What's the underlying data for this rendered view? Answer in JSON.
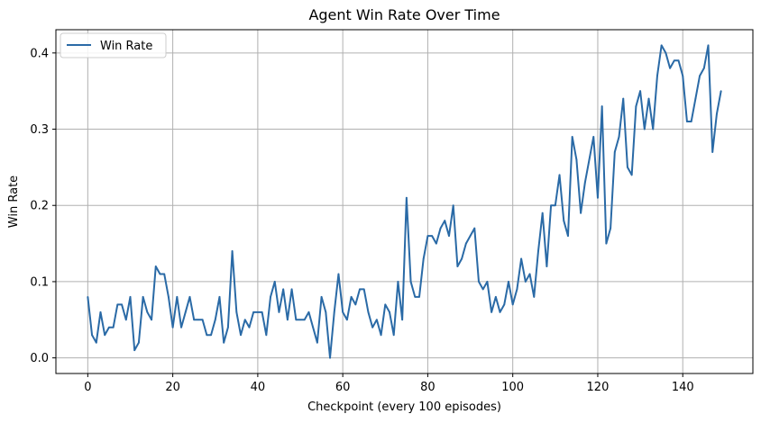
{
  "chart_data": {
    "type": "line",
    "title": "Agent Win Rate Over Time",
    "xlabel": "Checkpoint (every 100 episodes)",
    "ylabel": "Win Rate",
    "xlim": [
      -7.5,
      156.5
    ],
    "ylim": [
      -0.0205,
      0.4305
    ],
    "x_ticks": [
      0,
      20,
      40,
      60,
      80,
      100,
      120,
      140
    ],
    "y_ticks": [
      0.0,
      0.1,
      0.2,
      0.3,
      0.4
    ],
    "x_tick_labels": [
      "0",
      "20",
      "40",
      "60",
      "80",
      "100",
      "120",
      "140"
    ],
    "y_tick_labels": [
      "0.0",
      "0.1",
      "0.2",
      "0.3",
      "0.4"
    ],
    "grid": true,
    "legend_position": "top-left",
    "series": [
      {
        "name": "Win Rate",
        "color": "#2a6aa6",
        "x_start": 0,
        "x_step": 1,
        "values": [
          0.08,
          0.03,
          0.02,
          0.06,
          0.03,
          0.04,
          0.04,
          0.07,
          0.07,
          0.05,
          0.08,
          0.01,
          0.02,
          0.08,
          0.06,
          0.05,
          0.12,
          0.11,
          0.11,
          0.08,
          0.04,
          0.08,
          0.04,
          0.06,
          0.08,
          0.05,
          0.05,
          0.05,
          0.03,
          0.03,
          0.05,
          0.08,
          0.02,
          0.04,
          0.14,
          0.06,
          0.03,
          0.05,
          0.04,
          0.06,
          0.06,
          0.06,
          0.03,
          0.08,
          0.1,
          0.06,
          0.09,
          0.05,
          0.09,
          0.05,
          0.05,
          0.05,
          0.06,
          0.04,
          0.02,
          0.08,
          0.06,
          0.0,
          0.06,
          0.11,
          0.06,
          0.05,
          0.08,
          0.07,
          0.09,
          0.09,
          0.06,
          0.04,
          0.05,
          0.03,
          0.07,
          0.06,
          0.03,
          0.1,
          0.05,
          0.21,
          0.1,
          0.08,
          0.08,
          0.13,
          0.16,
          0.16,
          0.15,
          0.17,
          0.18,
          0.16,
          0.2,
          0.12,
          0.13,
          0.15,
          0.16,
          0.17,
          0.1,
          0.09,
          0.1,
          0.06,
          0.08,
          0.06,
          0.07,
          0.1,
          0.07,
          0.09,
          0.13,
          0.1,
          0.11,
          0.08,
          0.14,
          0.19,
          0.12,
          0.2,
          0.2,
          0.24,
          0.18,
          0.16,
          0.29,
          0.26,
          0.19,
          0.23,
          0.26,
          0.29,
          0.21,
          0.33,
          0.15,
          0.17,
          0.27,
          0.29,
          0.34,
          0.25,
          0.24,
          0.33,
          0.35,
          0.3,
          0.34,
          0.3,
          0.37,
          0.41,
          0.4,
          0.38,
          0.39,
          0.39,
          0.37,
          0.31,
          0.31,
          0.34,
          0.37,
          0.38,
          0.41,
          0.27,
          0.32,
          0.35
        ]
      }
    ]
  }
}
